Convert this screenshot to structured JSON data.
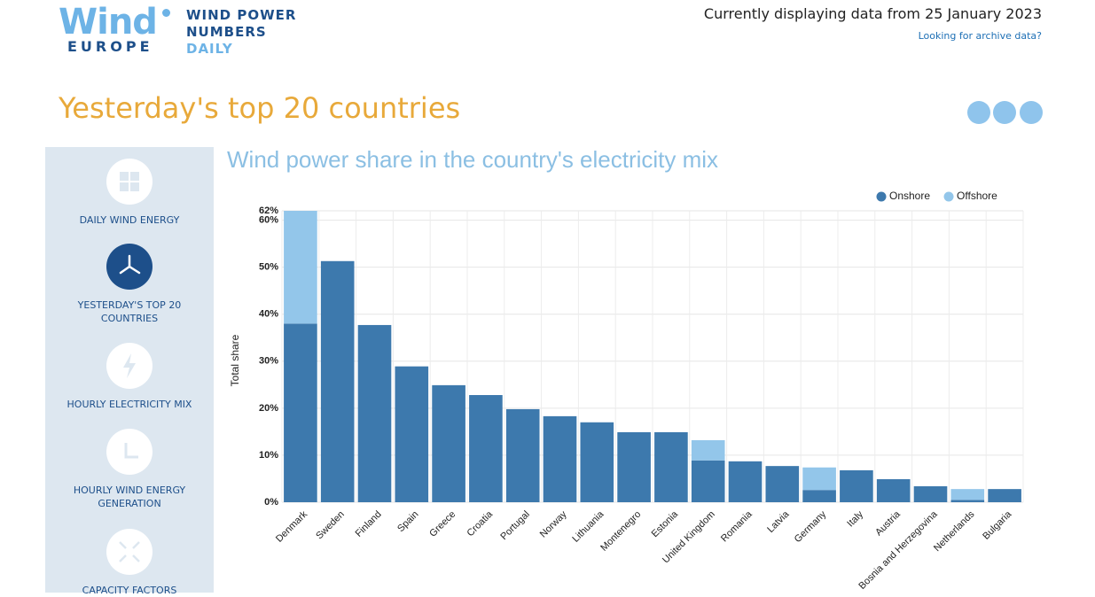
{
  "header": {
    "logo_top": "Wind",
    "logo_bottom": "EUROPE",
    "product": [
      "WIND POWER",
      "NUMBERS",
      "DAILY"
    ],
    "date_note": "Currently displaying data from 25 January 2023",
    "archive_link": "Looking for archive data?"
  },
  "page_title": "Yesterday's top 20 countries",
  "nav": [
    "DAILY WIND ENERGY",
    "YESTERDAY'S TOP 20 COUNTRIES",
    "HOURLY ELECTRICITY MIX",
    "HOURLY WIND ENERGY GENERATION",
    "CAPACITY FACTORS"
  ],
  "chart_data": {
    "type": "stacked_bar",
    "title": "Wind power share in the country's electricity mix",
    "y_label": "Total share",
    "categories": [
      "Denmark",
      "Sweden",
      "Finland",
      "Spain",
      "Greece",
      "Croatia",
      "Portugal",
      "Norway",
      "Lithuania",
      "Montenegro",
      "Estonia",
      "United Kingdom",
      "Romania",
      "Latvia",
      "Germany",
      "Italy",
      "Austria",
      "Bosnia and Herzegovina",
      "Netherlands",
      "Bulgaria"
    ],
    "series": [
      {
        "name": "Onshore",
        "color": "#3d79ad",
        "values": [
          38,
          51.3,
          37.7,
          28.9,
          24.9,
          22.8,
          19.8,
          18.3,
          17,
          14.9,
          14.9,
          8.9,
          8.7,
          7.7,
          2.6,
          6.8,
          4.9,
          3.4,
          0.5,
          2.8
        ]
      },
      {
        "name": "Offshore",
        "color": "#93c6ea",
        "values": [
          24,
          0,
          0,
          0,
          0,
          0,
          0,
          0,
          0,
          0,
          0,
          4.3,
          0,
          0,
          4.8,
          0,
          0,
          0,
          2.3,
          0
        ]
      }
    ],
    "ylim": [
      0,
      62
    ],
    "yticks": [
      {
        "value": 0,
        "label": "0%"
      },
      {
        "value": 10,
        "label": "10%"
      },
      {
        "value": 20,
        "label": "20%"
      },
      {
        "value": 30,
        "label": "30%"
      },
      {
        "value": 40,
        "label": "40%"
      },
      {
        "value": 50,
        "label": "50%"
      },
      {
        "value": 60,
        "label": "60%"
      },
      {
        "value": 62,
        "label": "62%"
      }
    ],
    "grid": true,
    "legend": "top-right"
  }
}
